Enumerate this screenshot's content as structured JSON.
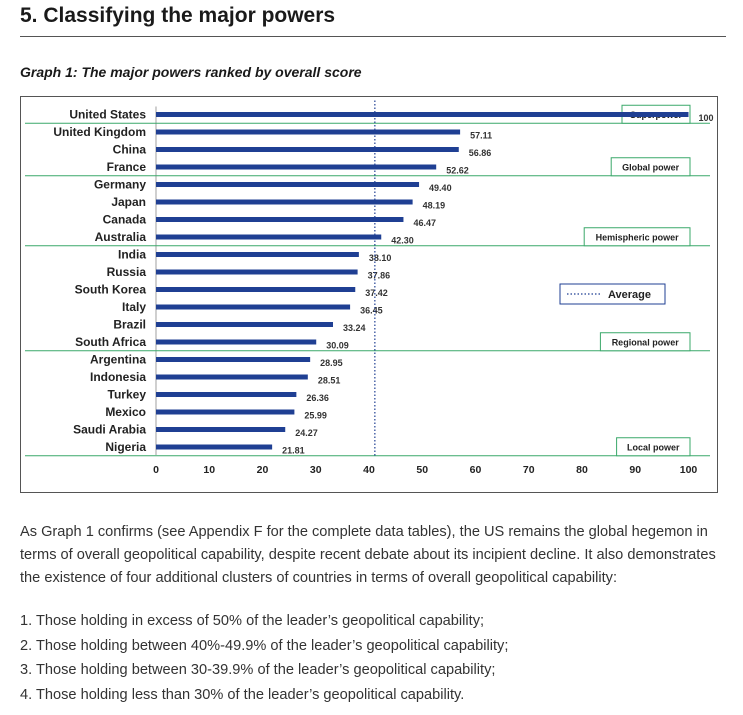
{
  "heading": "5. Classifying the major powers",
  "graph_title": "Graph 1: The major powers ranked by overall score",
  "chart_data": {
    "type": "bar",
    "orientation": "horizontal",
    "categories": [
      "United States",
      "United Kingdom",
      "China",
      "France",
      "Germany",
      "Japan",
      "Canada",
      "Australia",
      "India",
      "Russia",
      "South Korea",
      "Italy",
      "Brazil",
      "South Africa",
      "Argentina",
      "Indonesia",
      "Turkey",
      "Mexico",
      "Saudi Arabia",
      "Nigeria"
    ],
    "values": [
      100,
      57.11,
      56.86,
      52.62,
      49.4,
      48.19,
      46.47,
      42.3,
      38.1,
      37.86,
      37.42,
      36.45,
      33.24,
      30.09,
      28.95,
      28.51,
      26.36,
      25.99,
      24.27,
      21.81
    ],
    "value_labels": [
      "100",
      "57.11",
      "56.86",
      "52.62",
      "49.40",
      "48.19",
      "46.47",
      "42.30",
      "38.10",
      "37.86",
      "37.42",
      "36.45",
      "33.24",
      "30.09",
      "28.95",
      "28.51",
      "26.36",
      "25.99",
      "24.27",
      "21.81"
    ],
    "xlim": [
      0,
      100
    ],
    "x_ticks": [
      "0",
      "10",
      "20",
      "30",
      "40",
      "50",
      "60",
      "70",
      "80",
      "90",
      "100"
    ],
    "average": 41.1,
    "legend": [
      {
        "name": "Average",
        "style": "dotted line"
      }
    ],
    "clusters": [
      {
        "label": "Superpower",
        "members": [
          "United States"
        ]
      },
      {
        "label": "Global power",
        "members": [
          "United Kingdom",
          "China",
          "France"
        ]
      },
      {
        "label": "Hemispheric power",
        "members": [
          "Germany",
          "Japan",
          "Canada",
          "Australia"
        ]
      },
      {
        "label": "Regional power",
        "members": [
          "India",
          "Russia",
          "South Korea",
          "Italy",
          "Brazil",
          "South Africa"
        ]
      },
      {
        "label": "Local power",
        "members": [
          "Argentina",
          "Indonesia",
          "Turkey",
          "Mexico",
          "Saudi Arabia",
          "Nigeria"
        ]
      }
    ],
    "colors": {
      "bar": "#1f3f93",
      "divider": "#3aa86a",
      "average": "#1f3f93"
    }
  },
  "body_text": "As Graph 1 confirms (see Appendix F for the complete data tables), the US remains the global hegemon in terms of overall geopolitical capability, despite recent debate about its incipient decline. It also demonstrates the existence of four additional clusters of countries in terms of overall geopolitical capability:",
  "points": [
    "1.  Those holding in excess of 50% of the leader’s geopolitical capability;",
    "2.  Those holding between 40%-49.9% of the leader’s geopolitical capability;",
    "3.  Those holding between 30-39.9% of the leader’s geopolitical capability;",
    "4.  Those holding less than 30% of the leader’s geopolitical capability."
  ]
}
